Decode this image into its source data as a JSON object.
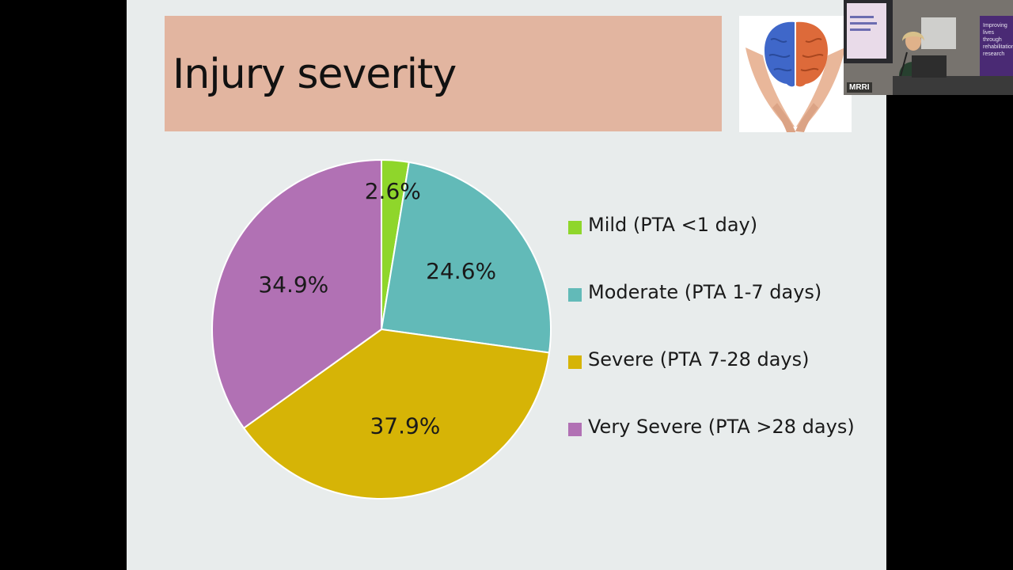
{
  "slide": {
    "title": "Injury severity"
  },
  "video": {
    "label": "MRRI",
    "banner_text": "Improving lives through rehabilitation research"
  },
  "colors": {
    "background": "#e8ecec",
    "title_box": "#e2b5a0",
    "mild": "#8fd62b",
    "moderate": "#62bab8",
    "severe": "#d6b406",
    "very_severe": "#b171b4"
  },
  "chart_data": {
    "type": "pie",
    "title": "",
    "categories": [
      "Mild (PTA <1 day)",
      "Moderate (PTA 1-7 days)",
      "Severe (PTA 7-28 days)",
      "Very Severe (PTA >28 days)"
    ],
    "values": [
      2.6,
      24.6,
      37.9,
      34.9
    ],
    "labels": [
      "2.6%",
      "24.6%",
      "37.9%",
      "34.9%"
    ],
    "colors": [
      "#8fd62b",
      "#62bab8",
      "#d6b406",
      "#b171b4"
    ],
    "legend": "right",
    "start_angle": "top, clockwise"
  }
}
